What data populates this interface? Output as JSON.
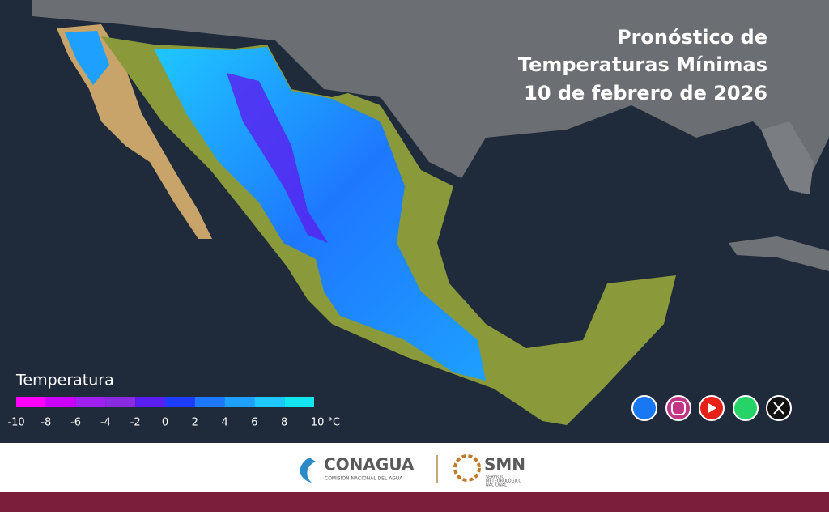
{
  "header": {
    "title_lines": [
      "Pronóstico de",
      "Temperaturas Mínimas",
      "10 de febrero de 2026"
    ]
  },
  "legend": {
    "title": "Temperatura",
    "colors": [
      "#ff00ff",
      "#cc00ff",
      "#a020f0",
      "#8a2be2",
      "#5a1ef0",
      "#1e3cff",
      "#1e78ff",
      "#1ea0ff",
      "#1ec8ff",
      "#14e6f0"
    ],
    "labels": [
      "-10",
      "-8",
      "-6",
      "-4",
      "-2",
      "0",
      "2",
      "4",
      "6",
      "8",
      "10 °C"
    ]
  },
  "footer": {
    "conagua": "CONAGUA",
    "conagua_sub": "COMISIÓN NACIONAL DEL AGUA",
    "smn": "SMN",
    "smn_sub": [
      "SERVICIO",
      "METEOROLÓGICO",
      "NACIONAL"
    ]
  }
}
